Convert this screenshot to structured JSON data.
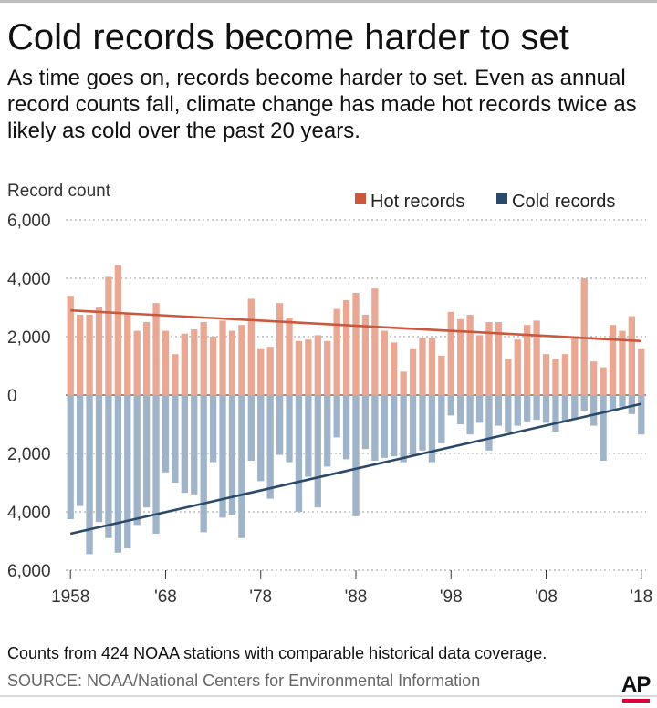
{
  "header": {
    "title": "Cold records become harder to set",
    "subtitle": "As time goes on, records become harder to set. Even as annual record counts fall, climate change has made hot records twice as likely as cold over the past 20 years."
  },
  "footer": {
    "note": "Counts from 424 NOAA stations with comparable historical data coverage.",
    "source": "SOURCE: NOAA/National Centers for Environmental Information",
    "logo_text": "AP"
  },
  "colors": {
    "hot_bar": "#e8a894",
    "cold_bar": "#9fb3c9",
    "hot_trend": "#c9583d",
    "cold_trend": "#2b4a6a",
    "hot_legend": "#c9583d",
    "cold_legend": "#2b4a6a",
    "ap_accent": "#e0003a"
  },
  "chart_data": {
    "type": "bar",
    "ylabel": "Record count",
    "ylim": [
      -6000,
      6000
    ],
    "y_ticks": [
      6000,
      4000,
      2000,
      0,
      -2000,
      -4000,
      -6000
    ],
    "y_tick_labels": [
      "6,000",
      "4,000",
      "2,000",
      "0",
      "2,000",
      "4,000",
      "6,000"
    ],
    "x_tick_years": [
      1958,
      1968,
      1978,
      1988,
      1998,
      2008,
      2018
    ],
    "x_tick_labels": [
      "1958",
      "'68",
      "'78",
      "'88",
      "'98",
      "'08",
      "'18"
    ],
    "grid": true,
    "legend": "top-right",
    "x": [
      1958,
      1959,
      1960,
      1961,
      1962,
      1963,
      1964,
      1965,
      1966,
      1967,
      1968,
      1969,
      1970,
      1971,
      1972,
      1973,
      1974,
      1975,
      1976,
      1977,
      1978,
      1979,
      1980,
      1981,
      1982,
      1983,
      1984,
      1985,
      1986,
      1987,
      1988,
      1989,
      1990,
      1991,
      1992,
      1993,
      1994,
      1995,
      1996,
      1997,
      1998,
      1999,
      2000,
      2001,
      2002,
      2003,
      2004,
      2005,
      2006,
      2007,
      2008,
      2009,
      2010,
      2011,
      2012,
      2013,
      2014,
      2015,
      2016,
      2017,
      2018
    ],
    "series": [
      {
        "name": "Hot records",
        "values": [
          3400,
          2750,
          2750,
          3000,
          4050,
          4450,
          2800,
          2200,
          2500,
          3150,
          2200,
          1400,
          2100,
          2250,
          2500,
          2000,
          2550,
          2200,
          2400,
          3300,
          1600,
          1650,
          3150,
          2650,
          1850,
          1900,
          2050,
          1850,
          2950,
          3250,
          3500,
          2750,
          3650,
          2200,
          1800,
          800,
          1600,
          1950,
          1950,
          1350,
          2850,
          2600,
          2750,
          2050,
          2500,
          2500,
          1250,
          1900,
          2400,
          2550,
          1400,
          1250,
          1400,
          2000,
          4000,
          1150,
          950,
          2400,
          2200,
          2700,
          1600
        ]
      },
      {
        "name": "Cold records",
        "values": [
          -4250,
          -3800,
          -5450,
          -4350,
          -4900,
          -5400,
          -5250,
          -4450,
          -3850,
          -4750,
          -2650,
          -3000,
          -3350,
          -3400,
          -4700,
          -2300,
          -4200,
          -4100,
          -4900,
          -2250,
          -2950,
          -3550,
          -2050,
          -2300,
          -4000,
          -2800,
          -3850,
          -2450,
          -1450,
          -2200,
          -4150,
          -1850,
          -2250,
          -2150,
          -2100,
          -2300,
          -2050,
          -1900,
          -2300,
          -1650,
          -700,
          -1000,
          -1350,
          -950,
          -1900,
          -1050,
          -1250,
          -1050,
          -900,
          -850,
          -950,
          -1250,
          -900,
          -800,
          -550,
          -1050,
          -2250,
          -500,
          -400,
          -650,
          -1350
        ]
      }
    ],
    "trend_lines": [
      {
        "name": "Hot trend",
        "start": [
          1958,
          2900
        ],
        "end": [
          2018,
          1850
        ]
      },
      {
        "name": "Cold trend",
        "start": [
          1958,
          -4750
        ],
        "end": [
          2018,
          -300
        ]
      }
    ]
  }
}
